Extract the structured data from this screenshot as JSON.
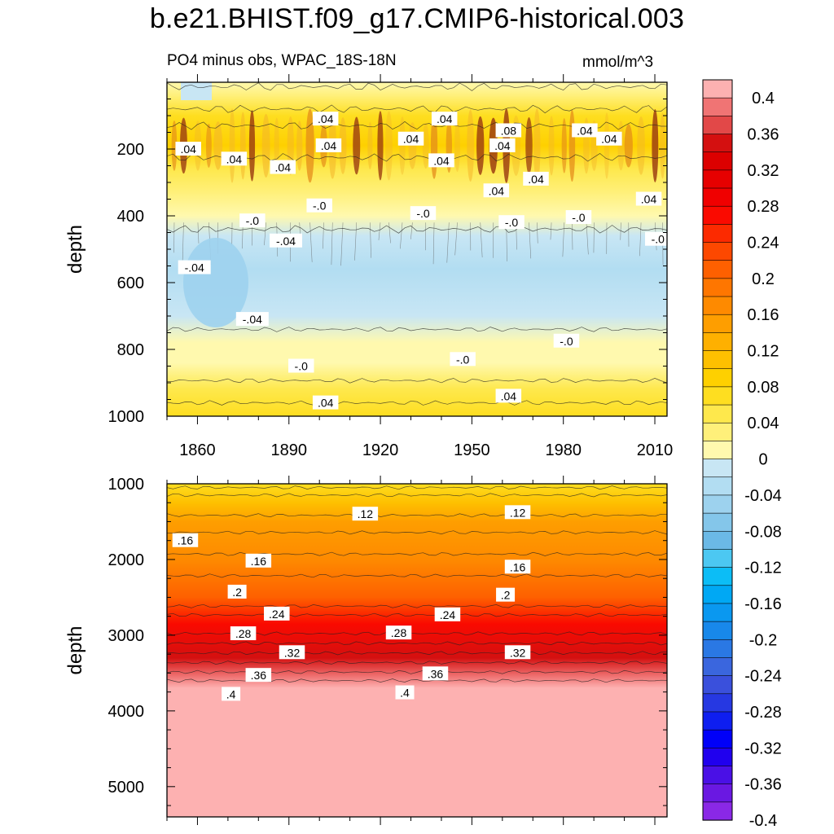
{
  "figure": {
    "title": "b.e21.BHIST.f09_g17.CMIP6-historical.003",
    "left_string": "PO4 minus obs, WPAC_18S-18N",
    "right_string": "mmol/m^3"
  },
  "chart_data": [
    {
      "type": "heatmap",
      "name": "upper-ocean panel",
      "title": "PO4 minus obs, WPAC_18S-18N",
      "units": "mmol/m^3",
      "xlabel": "",
      "ylabel": "depth",
      "x_range": [
        1850,
        2014
      ],
      "x_ticks": [
        1860,
        1890,
        1920,
        1950,
        1980,
        2010
      ],
      "y_range": [
        0,
        1000
      ],
      "y_reversed": true,
      "y_ticks": [
        200,
        400,
        600,
        800,
        1000
      ],
      "depth_profile": [
        {
          "depth": 0,
          "value": -0.01
        },
        {
          "depth": 40,
          "value": 0.02
        },
        {
          "depth": 100,
          "value": 0.05
        },
        {
          "depth": 190,
          "value": 0.08
        },
        {
          "depth": 260,
          "value": 0.04
        },
        {
          "depth": 330,
          "value": 0.02
        },
        {
          "depth": 400,
          "value": 0.0
        },
        {
          "depth": 460,
          "value": -0.03
        },
        {
          "depth": 560,
          "value": -0.04
        },
        {
          "depth": 700,
          "value": -0.03
        },
        {
          "depth": 780,
          "value": -0.01
        },
        {
          "depth": 840,
          "value": 0.0
        },
        {
          "depth": 920,
          "value": 0.03
        },
        {
          "depth": 1000,
          "value": 0.05
        }
      ],
      "contour_labels": [
        {
          "text": ".04",
          "year": 1902,
          "depth": 110
        },
        {
          "text": ".04",
          "year": 1941,
          "depth": 110
        },
        {
          "text": ".08",
          "year": 1962,
          "depth": 145
        },
        {
          "text": ".04",
          "year": 1987,
          "depth": 145
        },
        {
          "text": ".04",
          "year": 1930,
          "depth": 170
        },
        {
          "text": ".04",
          "year": 1995,
          "depth": 170
        },
        {
          "text": ".04",
          "year": 1960,
          "depth": 190
        },
        {
          "text": ".04",
          "year": 1903,
          "depth": 190
        },
        {
          "text": ".04",
          "year": 1857,
          "depth": 200
        },
        {
          "text": ".04",
          "year": 1940,
          "depth": 235
        },
        {
          "text": ".04",
          "year": 1872,
          "depth": 230
        },
        {
          "text": ".04",
          "year": 1888,
          "depth": 255
        },
        {
          "text": ".04",
          "year": 1971,
          "depth": 290
        },
        {
          "text": ".04",
          "year": 1958,
          "depth": 325
        },
        {
          "text": ".04",
          "year": 2008,
          "depth": 350
        },
        {
          "text": "-.0",
          "year": 1878,
          "depth": 415
        },
        {
          "text": "-.0",
          "year": 1900,
          "depth": 370
        },
        {
          "text": "-.0",
          "year": 1934,
          "depth": 393
        },
        {
          "text": "-.0",
          "year": 1963,
          "depth": 420
        },
        {
          "text": "-.0",
          "year": 1985,
          "depth": 405
        },
        {
          "text": "-.0",
          "year": 2011,
          "depth": 470
        },
        {
          "text": "-.04",
          "year": 1889,
          "depth": 475
        },
        {
          "text": "-.04",
          "year": 1859,
          "depth": 555
        },
        {
          "text": "-.04",
          "year": 1878,
          "depth": 710
        },
        {
          "text": "-.0",
          "year": 1981,
          "depth": 775
        },
        {
          "text": "-.0",
          "year": 1894,
          "depth": 850
        },
        {
          "text": "-.0",
          "year": 1947,
          "depth": 830
        },
        {
          "text": ".04",
          "year": 1902,
          "depth": 960
        },
        {
          "text": ".04",
          "year": 1962,
          "depth": 940
        }
      ]
    },
    {
      "type": "heatmap",
      "name": "deep-ocean panel",
      "xlabel": "",
      "ylabel": "depth",
      "x_range": [
        1850,
        2014
      ],
      "y_range": [
        1000,
        5400
      ],
      "y_reversed": true,
      "y_ticks": [
        1000,
        2000,
        3000,
        4000,
        5000
      ],
      "depth_profile": [
        {
          "depth": 1000,
          "value": 0.05
        },
        {
          "depth": 1250,
          "value": 0.1
        },
        {
          "depth": 1500,
          "value": 0.13
        },
        {
          "depth": 2000,
          "value": 0.165
        },
        {
          "depth": 2500,
          "value": 0.2
        },
        {
          "depth": 2850,
          "value": 0.26
        },
        {
          "depth": 3300,
          "value": 0.33
        },
        {
          "depth": 3550,
          "value": 0.37
        },
        {
          "depth": 3700,
          "value": 0.4
        },
        {
          "depth": 3800,
          "value": 0.45
        },
        {
          "depth": 5400,
          "value": 0.45
        }
      ],
      "contour_labels": [
        {
          "text": ".12",
          "year": 1915,
          "depth": 1400
        },
        {
          "text": ".12",
          "year": 1965,
          "depth": 1380
        },
        {
          "text": ".16",
          "year": 1856,
          "depth": 1750
        },
        {
          "text": ".16",
          "year": 1880,
          "depth": 2020
        },
        {
          "text": ".16",
          "year": 1965,
          "depth": 2100
        },
        {
          "text": ".2",
          "year": 1873,
          "depth": 2430
        },
        {
          "text": ".2",
          "year": 1961,
          "depth": 2470
        },
        {
          "text": ".24",
          "year": 1886,
          "depth": 2720
        },
        {
          "text": ".24",
          "year": 1942,
          "depth": 2730
        },
        {
          "text": ".28",
          "year": 1875,
          "depth": 2980
        },
        {
          "text": ".28",
          "year": 1926,
          "depth": 2970
        },
        {
          "text": ".32",
          "year": 1891,
          "depth": 3230
        },
        {
          "text": ".32",
          "year": 1965,
          "depth": 3230
        },
        {
          "text": ".36",
          "year": 1880,
          "depth": 3530
        },
        {
          "text": ".36",
          "year": 1938,
          "depth": 3510
        },
        {
          "text": ".4",
          "year": 1871,
          "depth": 3780
        },
        {
          "text": ".4",
          "year": 1928,
          "depth": 3760
        }
      ]
    }
  ],
  "colorbar": {
    "levels": [
      -0.4,
      -0.36,
      -0.32,
      -0.28,
      -0.24,
      -0.2,
      -0.16,
      -0.12,
      -0.08,
      -0.04,
      0,
      0.04,
      0.08,
      0.12,
      0.16,
      0.2,
      0.24,
      0.28,
      0.32,
      0.36,
      0.4
    ],
    "labels": [
      "0.4",
      "0.36",
      "0.32",
      "0.28",
      "0.24",
      "0.2",
      "0.16",
      "0.12",
      "0.08",
      "0.04",
      "0",
      "-0.04",
      "-0.08",
      "-0.12",
      "-0.16",
      "-0.2",
      "-0.24",
      "-0.28",
      "-0.32",
      "-0.36",
      "-0.4"
    ],
    "colors_top_to_bottom": [
      "#fdb1b1",
      "#f07474",
      "#e24848",
      "#d41010",
      "#dc0000",
      "#e60000",
      "#f00000",
      "#fa0a00",
      "#fc2a00",
      "#fd4800",
      "#fe6000",
      "#fe7600",
      "#fe8a00",
      "#fe9e00",
      "#feb000",
      "#fec000",
      "#fed000",
      "#fede20",
      "#fee84c",
      "#fff07a",
      "#fff9ae",
      "#c8e6f4",
      "#b2ddf2",
      "#9dd2ee",
      "#84c6ea",
      "#6bb9e6",
      "#4cc8f2",
      "#0cbdf6",
      "#00a8f4",
      "#0a98f0",
      "#1888ea",
      "#2a78e4",
      "#3a66de",
      "#3a50dc",
      "#2638e2",
      "#0e1ef0",
      "#0000f8",
      "#2000ee",
      "#4a10e6",
      "#6a18e2",
      "#8a28e6"
    ]
  }
}
